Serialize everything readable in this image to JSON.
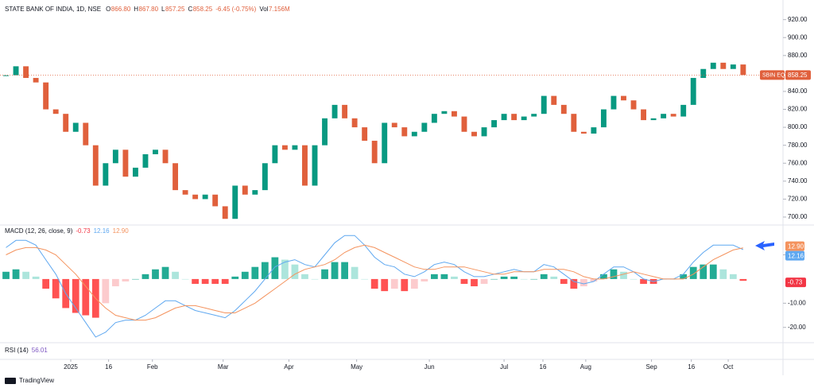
{
  "chart_data": [
    {
      "type": "candlestick",
      "title": "STATE BANK OF INDIA, 1D, NSE",
      "legend": [
        {
          "label": "O",
          "value": "866.80"
        },
        {
          "label": "H",
          "value": "867.80"
        },
        {
          "label": "L",
          "value": "857.25"
        },
        {
          "label": "C",
          "value": "858.25"
        }
      ],
      "change": "-6.45 (-0.75%)",
      "volume": {
        "label": "Vol",
        "value": "7.156M"
      },
      "symbol_label": "SBIN EQ",
      "last_label": "858.25",
      "up_color": "#089981",
      "down_color": "#e0603c",
      "closes": [
        858,
        868,
        855,
        850,
        820,
        815,
        795,
        805,
        780,
        735,
        760,
        775,
        745,
        755,
        770,
        775,
        760,
        730,
        725,
        720,
        725,
        712,
        698,
        735,
        725,
        730,
        760,
        780,
        775,
        780,
        735,
        780,
        810,
        825,
        810,
        800,
        785,
        760,
        805,
        800,
        790,
        795,
        805,
        815,
        818,
        812,
        795,
        790,
        800,
        808,
        815,
        808,
        812,
        815,
        835,
        825,
        815,
        795,
        793,
        800,
        820,
        835,
        830,
        820,
        808,
        810,
        815,
        812,
        825,
        855,
        865,
        872,
        865,
        870,
        858.25
      ],
      "xlim": [
        -0.6,
        78
      ],
      "xticks": [
        {
          "value": 6.5,
          "label": "2025"
        },
        {
          "value": 10.3,
          "label": "16"
        },
        {
          "value": 14.7,
          "label": "Feb"
        },
        {
          "value": 21.8,
          "label": "Mar"
        },
        {
          "value": 28.4,
          "label": "Apr"
        },
        {
          "value": 35.2,
          "label": "May"
        },
        {
          "value": 42.5,
          "label": "Jun"
        },
        {
          "value": 50,
          "label": "Jul"
        },
        {
          "value": 53.9,
          "label": "16"
        },
        {
          "value": 58.2,
          "label": "Aug"
        },
        {
          "value": 64.8,
          "label": "Sep"
        },
        {
          "value": 68.8,
          "label": "16"
        },
        {
          "value": 72.5,
          "label": "Oct"
        }
      ],
      "ylim": [
        692,
        933
      ],
      "yticks": [
        {
          "value": 700,
          "label": "700.00"
        },
        {
          "value": 720,
          "label": "720.00"
        },
        {
          "value": 740,
          "label": "740.00"
        },
        {
          "value": 760,
          "label": "760.00"
        },
        {
          "value": 780,
          "label": "780.00"
        },
        {
          "value": 800,
          "label": "800.00"
        },
        {
          "value": 820,
          "label": "820.00"
        },
        {
          "value": 840,
          "label": "840.00"
        },
        {
          "value": 860,
          "label": "860.00"
        },
        {
          "value": 880,
          "label": "880.00"
        },
        {
          "value": 900,
          "label": "900.00"
        },
        {
          "value": 920,
          "label": "920.00"
        }
      ]
    },
    {
      "type": "macd",
      "title": "MACD (12, 26, close, 9)",
      "ylim": [
        -26,
        22
      ],
      "yticks": [
        {
          "value": -20,
          "label": "-20.00"
        },
        {
          "value": -10,
          "label": "-10.00"
        },
        {
          "value": 10,
          "label": "10.00"
        }
      ],
      "histogram": {
        "values": [
          3,
          4,
          3,
          1,
          -4,
          -8,
          -12,
          -14,
          -15,
          -16,
          -10,
          -3,
          -1,
          0,
          2,
          4,
          5,
          3,
          0,
          -2,
          -2,
          -2,
          -2,
          1,
          3,
          5,
          7,
          9,
          8,
          6,
          2,
          0,
          4,
          7,
          7,
          5,
          0,
          -4,
          -5,
          -4,
          -5,
          -4,
          -1,
          2,
          2,
          1,
          -2,
          -3,
          -2,
          0,
          1,
          1,
          0,
          0,
          2,
          1,
          -2,
          -4,
          -3,
          -1,
          2,
          4,
          3,
          0,
          -2,
          -2,
          0,
          0,
          2,
          5,
          6,
          6,
          4,
          2,
          -0.73
        ],
        "last_label": "-0.73",
        "colors": {
          "up_rising": "#22ab94",
          "up_falling": "#ace5dc",
          "down_rising": "#fccbcd",
          "down_falling": "#ff5252"
        }
      },
      "series": [
        {
          "name": "MACD",
          "color": "#5fa8f0",
          "last_label": "12.16",
          "values": [
            13,
            16,
            16,
            14,
            8,
            2,
            -6,
            -12,
            -18,
            -24,
            -22,
            -18,
            -17,
            -17,
            -15,
            -12,
            -9,
            -9,
            -11,
            -13,
            -14,
            -15,
            -16,
            -13,
            -9,
            -5,
            0,
            5,
            7,
            8,
            6,
            5,
            10,
            15,
            18,
            18,
            14,
            9,
            6,
            5,
            2,
            1,
            3,
            6,
            7,
            6,
            3,
            1,
            1,
            2,
            3,
            4,
            3,
            3,
            6,
            5,
            2,
            -1,
            -2,
            -1,
            2,
            5,
            5,
            3,
            0,
            -1,
            0,
            0,
            2,
            7,
            11,
            14,
            14,
            14,
            12.16
          ]
        },
        {
          "name": "Signal",
          "color": "#f4935e",
          "last_label": "12.90",
          "values": [
            10,
            12,
            13,
            13,
            12,
            10,
            6,
            2,
            -3,
            -8,
            -12,
            -15,
            -16,
            -17,
            -17,
            -16,
            -14,
            -12,
            -11,
            -11,
            -12,
            -13,
            -14,
            -14,
            -12,
            -10,
            -7,
            -4,
            -1,
            2,
            4,
            5,
            6,
            8,
            11,
            13,
            14,
            13,
            11,
            9,
            7,
            5,
            4,
            4,
            5,
            5,
            5,
            4,
            3,
            2,
            2,
            3,
            3,
            3,
            4,
            4,
            4,
            3,
            1,
            0,
            0,
            1,
            2,
            3,
            2,
            1,
            0,
            0,
            0,
            2,
            5,
            8,
            10,
            12,
            12.9
          ]
        }
      ]
    },
    {
      "type": "rsi",
      "title": "RSI (14)",
      "last_label": "56.01"
    }
  ],
  "footer": {
    "brand": "TradingView"
  }
}
